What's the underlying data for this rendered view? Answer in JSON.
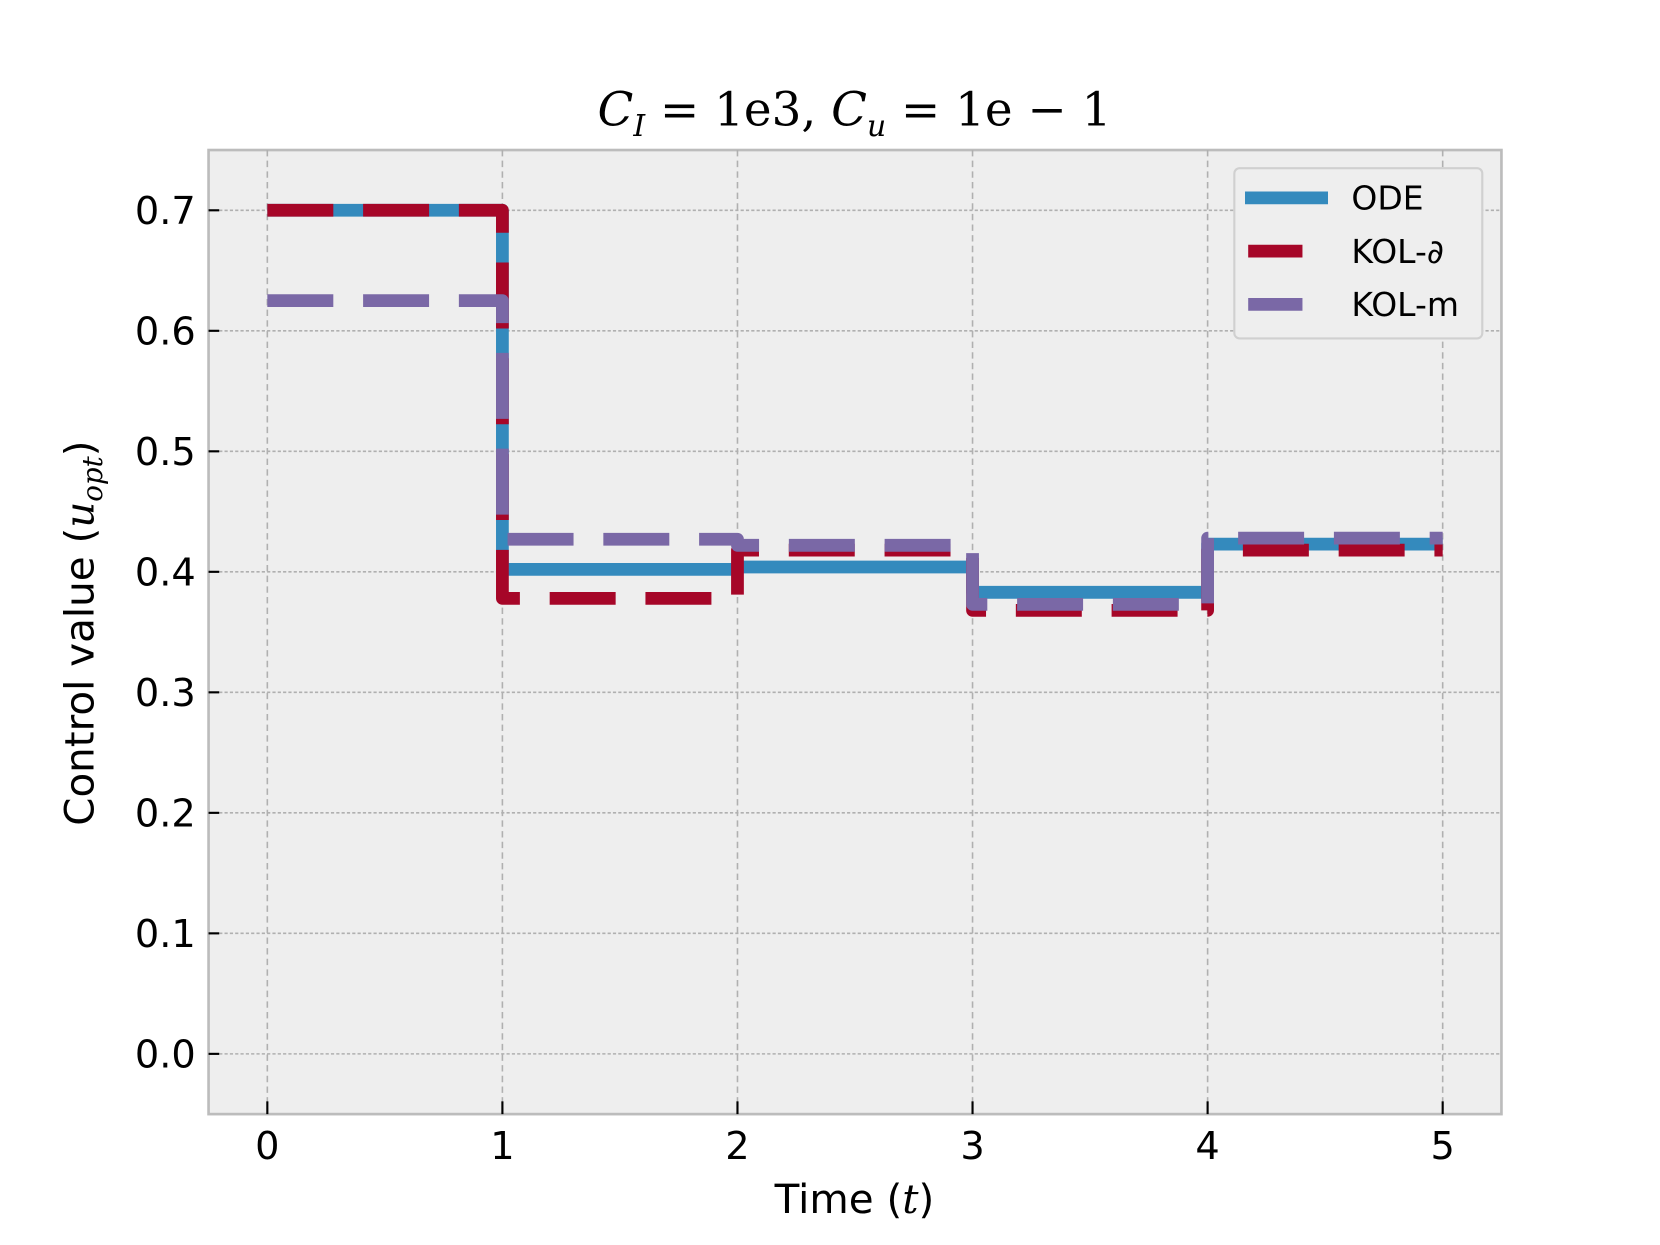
{
  "chart_data": {
    "type": "line",
    "step": "post",
    "title": "C_I = 1e3,  C_u = 1e-1",
    "title_parts": {
      "a": "C",
      "a_sub": "I",
      "a_val": " = 1e3,  ",
      "b": "C",
      "b_sub": "u",
      "b_val": " = 1e − 1"
    },
    "xlabel": "Time (t)",
    "ylabel": "Control value (u_opt)",
    "xlabel_parts": {
      "text": "Time (",
      "var": "t",
      "close": ")"
    },
    "ylabel_parts": {
      "text": "Control value (",
      "var": "u",
      "sub": "opt",
      "close": ")"
    },
    "xlim": [
      -0.25,
      5.25
    ],
    "ylim": [
      -0.05,
      0.75
    ],
    "xticks": [
      "0",
      "1",
      "2",
      "3",
      "4",
      "5"
    ],
    "yticks": [
      "0.0",
      "0.1",
      "0.2",
      "0.3",
      "0.4",
      "0.5",
      "0.6",
      "0.7"
    ],
    "grid": true,
    "legend_position": "top-right",
    "x": [
      0,
      1,
      2,
      3,
      4,
      5
    ],
    "series": [
      {
        "name": "ODE",
        "color": "#348abd",
        "style": "solid",
        "values": [
          0.7,
          0.402,
          0.404,
          0.383,
          0.423,
          0.423
        ]
      },
      {
        "name": "KOL-∂",
        "color": "#a60628",
        "style": "dashed",
        "values": [
          0.7,
          0.378,
          0.418,
          0.368,
          0.418,
          0.418
        ]
      },
      {
        "name": "KOL-m",
        "color": "#7a68a6",
        "style": "dashed",
        "values": [
          0.625,
          0.427,
          0.422,
          0.373,
          0.428,
          0.428
        ]
      }
    ]
  }
}
